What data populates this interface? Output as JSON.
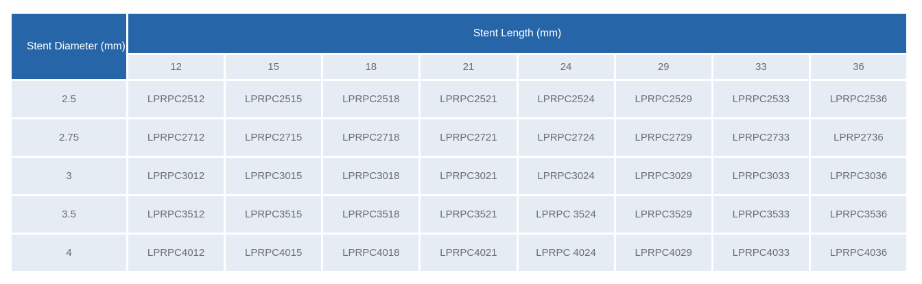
{
  "chart_data": {
    "type": "table",
    "corner_header": "Stent Diameter (mm)",
    "column_group_header": "Stent Length (mm)",
    "columns": [
      "12",
      "15",
      "18",
      "21",
      "24",
      "29",
      "33",
      "36"
    ],
    "rows": [
      {
        "diameter": "2.5",
        "codes": [
          "LPRPC2512",
          "LPRPC2515",
          "LPRPC2518",
          "LPRPC2521",
          "LPRPC2524",
          "LPRPC2529",
          "LPRPC2533",
          "LPRPC2536"
        ]
      },
      {
        "diameter": "2.75",
        "codes": [
          "LPRPC2712",
          "LPRPC2715",
          "LPRPC2718",
          "LPRPC2721",
          "LPRPC2724",
          "LPRPC2729",
          "LPRPC2733",
          "LPRP2736"
        ]
      },
      {
        "diameter": "3",
        "codes": [
          "LPRPC3012",
          "LPRPC3015",
          "LPRPC3018",
          "LPRPC3021",
          "LPRPC3024",
          "LPRPC3029",
          "LPRPC3033",
          "LPRPC3036"
        ]
      },
      {
        "diameter": "3.5",
        "codes": [
          "LPRPC3512",
          "LPRPC3515",
          "LPRPC3518",
          "LPRPC3521",
          "LPRPC 3524",
          "LPRPC3529",
          "LPRPC3533",
          "LPRPC3536"
        ]
      },
      {
        "diameter": "4",
        "codes": [
          "LPRPC4012",
          "LPRPC4015",
          "LPRPC4018",
          "LPRPC4021",
          "LPRPC 4024",
          "LPRPC4029",
          "LPRPC4033",
          "LPRPC4036"
        ]
      }
    ],
    "layout": {
      "grid": "white 3px gaps between cells",
      "header_merged": "corner spans 2 rows; length group header spans 8 columns"
    }
  },
  "colors": {
    "header_bg": "#2565a8",
    "header_text": "#ffffff",
    "cell_bg": "#e5ecf3",
    "cell_text": "#6d6e70"
  }
}
